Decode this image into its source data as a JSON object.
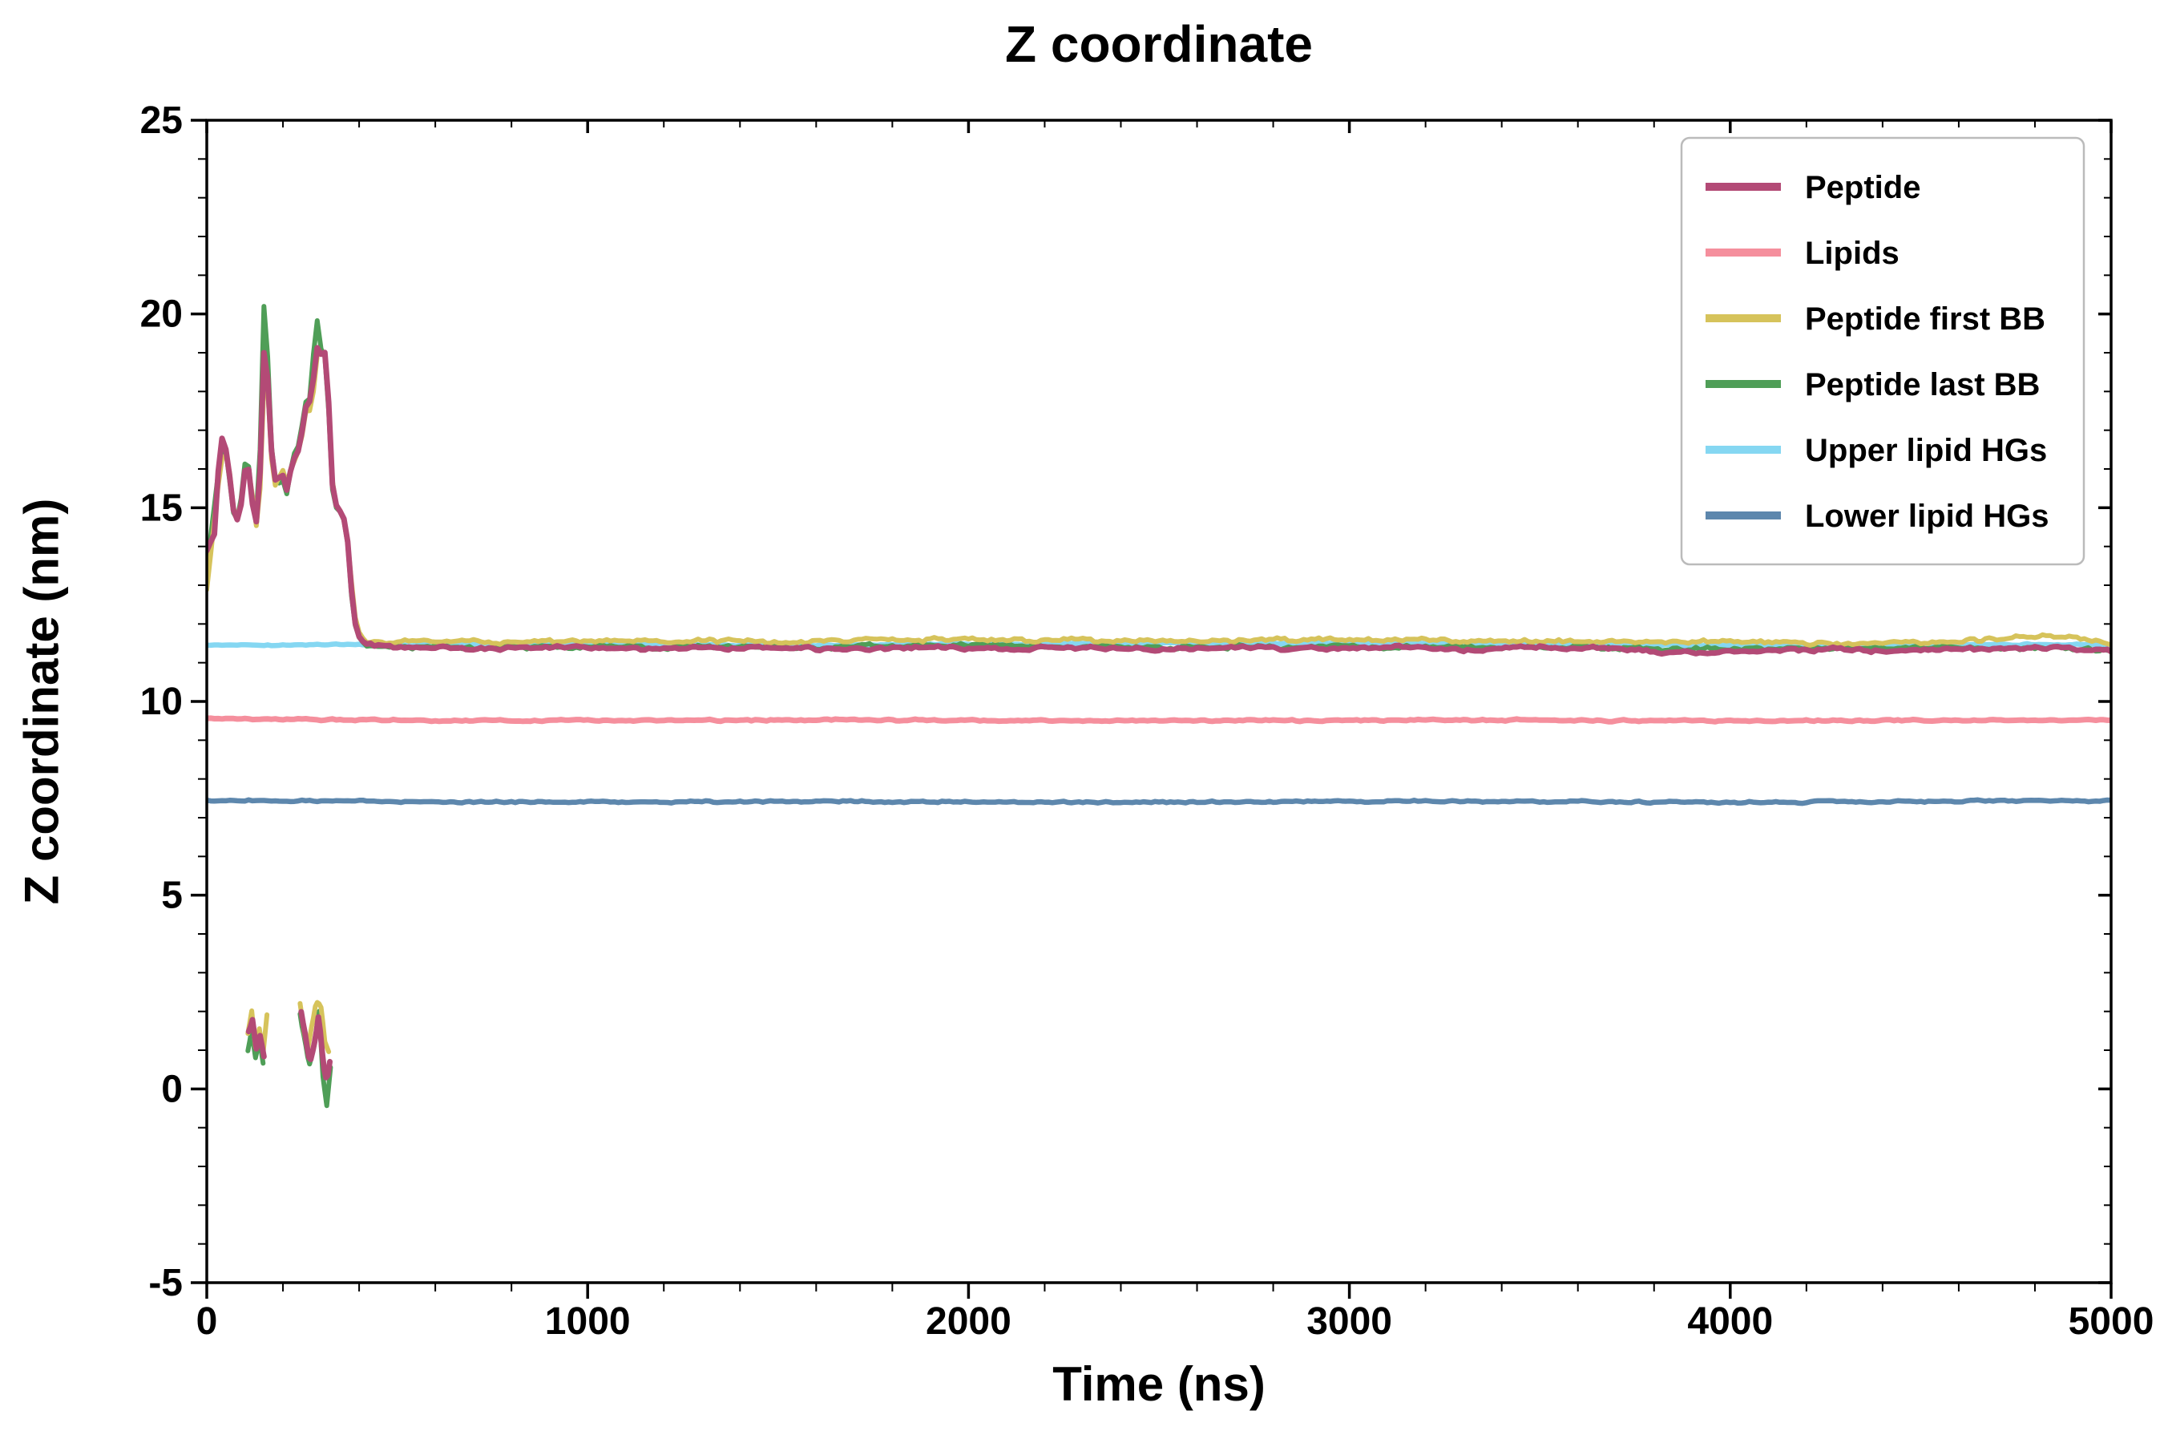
{
  "chart_data": {
    "type": "line",
    "title": "Z coordinate",
    "xlabel": "Time (ns)",
    "ylabel": "Z coordinate (nm)",
    "xlim": [
      0,
      5000
    ],
    "ylim": [
      -5,
      25
    ],
    "xticks": [
      0,
      1000,
      2000,
      3000,
      4000,
      5000
    ],
    "yticks": [
      -5,
      0,
      5,
      10,
      15,
      20,
      25
    ],
    "x_minor_step": 200,
    "y_minor_step": 1,
    "grid": false,
    "legend_position": "upper right",
    "axis_color": "#000000",
    "background_color": "#ffffff",
    "legend_border_color": "#bbbbbb",
    "noise_seed": 9,
    "legend_order": [
      "Peptide",
      "Lipids",
      "Peptide first BB",
      "Peptide last BB",
      "Upper lipid HGs",
      "Lower lipid HGs"
    ],
    "series": [
      {
        "name": "Upper lipid HGs",
        "color": "#85d7f2",
        "width": 6.5,
        "noise": 0.045,
        "segments": [
          [
            [
              0,
              11.45
            ],
            [
              800,
              11.47
            ],
            [
              1600,
              11.45
            ],
            [
              2400,
              11.5
            ],
            [
              3200,
              11.5
            ],
            [
              4000,
              11.45
            ],
            [
              5000,
              11.47
            ]
          ]
        ]
      },
      {
        "name": "Lower lipid HGs",
        "color": "#5d87ad",
        "width": 6.5,
        "noise": 0.055,
        "segments": [
          [
            [
              0,
              7.45
            ],
            [
              800,
              7.4
            ],
            [
              1600,
              7.42
            ],
            [
              2400,
              7.4
            ],
            [
              3200,
              7.43
            ],
            [
              4000,
              7.4
            ],
            [
              5000,
              7.44
            ]
          ]
        ]
      },
      {
        "name": "Lipids",
        "color": "#f58f9d",
        "width": 7,
        "noise": 0.05,
        "segments": [
          [
            [
              0,
              9.55
            ],
            [
              800,
              9.5
            ],
            [
              1600,
              9.52
            ],
            [
              2400,
              9.5
            ],
            [
              3200,
              9.52
            ],
            [
              4000,
              9.5
            ],
            [
              5000,
              9.52
            ]
          ]
        ]
      },
      {
        "name": "Peptide last BB",
        "color": "#4f9e57",
        "width": 6,
        "noise": 0.12,
        "segments": [
          [
            [
              0,
              13.4
            ],
            [
              30,
              15.9
            ],
            [
              45,
              16.9
            ],
            [
              60,
              15.7
            ],
            [
              75,
              14.4
            ],
            [
              90,
              15.2
            ],
            [
              105,
              16.5
            ],
            [
              120,
              15.0
            ],
            [
              135,
              14.6
            ],
            [
              150,
              20.2
            ],
            [
              158,
              19.6
            ],
            [
              165,
              17.2
            ],
            [
              175,
              16.0
            ],
            [
              185,
              15.4
            ],
            [
              195,
              15.9
            ],
            [
              210,
              15.4
            ],
            [
              225,
              16.3
            ],
            [
              240,
              16.6
            ],
            [
              255,
              17.4
            ],
            [
              265,
              18.1
            ],
            [
              275,
              17.5
            ],
            [
              285,
              20.4
            ],
            [
              295,
              19.2
            ],
            [
              305,
              19.0
            ],
            [
              315,
              18.8
            ],
            [
              325,
              16.2
            ],
            [
              335,
              14.8
            ],
            [
              345,
              15.3
            ],
            [
              355,
              14.5
            ],
            [
              365,
              14.9
            ],
            [
              375,
              13.2
            ],
            [
              385,
              12.2
            ],
            [
              395,
              11.7
            ],
            [
              420,
              11.4
            ],
            [
              600,
              11.4
            ],
            [
              1000,
              11.4
            ],
            [
              1500,
              11.4
            ],
            [
              2000,
              11.45
            ],
            [
              2500,
              11.4
            ],
            [
              3000,
              11.4
            ],
            [
              3500,
              11.4
            ],
            [
              4000,
              11.35
            ],
            [
              4500,
              11.4
            ],
            [
              5000,
              11.35
            ]
          ],
          [
            [
              108,
              1.0
            ],
            [
              118,
              1.5
            ],
            [
              128,
              0.8
            ],
            [
              138,
              1.2
            ],
            [
              148,
              0.7
            ]
          ],
          [
            [
              245,
              1.9
            ],
            [
              258,
              1.2
            ],
            [
              268,
              0.6
            ],
            [
              280,
              1.0
            ],
            [
              295,
              2.0
            ],
            [
              305,
              0.3
            ],
            [
              315,
              -0.4
            ],
            [
              325,
              0.5
            ]
          ]
        ]
      },
      {
        "name": "Peptide first BB",
        "color": "#d6c35b",
        "width": 6,
        "noise": 0.12,
        "segments": [
          [
            [
              0,
              12.9
            ],
            [
              30,
              15.6
            ],
            [
              45,
              16.6
            ],
            [
              60,
              15.9
            ],
            [
              75,
              14.5
            ],
            [
              90,
              15.1
            ],
            [
              105,
              16.2
            ],
            [
              120,
              15.3
            ],
            [
              135,
              14.2
            ],
            [
              150,
              18.2
            ],
            [
              158,
              18.6
            ],
            [
              165,
              16.8
            ],
            [
              175,
              15.7
            ],
            [
              185,
              15.5
            ],
            [
              195,
              16.1
            ],
            [
              210,
              15.6
            ],
            [
              225,
              16.1
            ],
            [
              240,
              16.4
            ],
            [
              255,
              17.1
            ],
            [
              265,
              17.9
            ],
            [
              275,
              17.2
            ],
            [
              285,
              18.8
            ],
            [
              295,
              19.1
            ],
            [
              305,
              18.8
            ],
            [
              315,
              19.0
            ],
            [
              325,
              16.5
            ],
            [
              335,
              15.0
            ],
            [
              345,
              15.1
            ],
            [
              355,
              14.7
            ],
            [
              365,
              14.6
            ],
            [
              375,
              13.6
            ],
            [
              385,
              12.5
            ],
            [
              395,
              11.8
            ],
            [
              420,
              11.55
            ],
            [
              600,
              11.55
            ],
            [
              1000,
              11.55
            ],
            [
              1500,
              11.55
            ],
            [
              2000,
              11.6
            ],
            [
              2500,
              11.55
            ],
            [
              3000,
              11.6
            ],
            [
              3500,
              11.55
            ],
            [
              4000,
              11.55
            ],
            [
              4300,
              11.5
            ],
            [
              4600,
              11.55
            ],
            [
              4850,
              11.7
            ],
            [
              5000,
              11.5
            ]
          ],
          [
            [
              108,
              1.4
            ],
            [
              118,
              2.0
            ],
            [
              128,
              1.1
            ],
            [
              138,
              1.6
            ],
            [
              148,
              1.0
            ],
            [
              158,
              1.9
            ]
          ],
          [
            [
              245,
              2.2
            ],
            [
              255,
              1.5
            ],
            [
              265,
              1.0
            ],
            [
              275,
              1.6
            ],
            [
              288,
              2.3
            ],
            [
              300,
              2.1
            ],
            [
              310,
              1.2
            ],
            [
              322,
              0.9
            ]
          ]
        ]
      },
      {
        "name": "Peptide",
        "color": "#b34a76",
        "width": 7,
        "noise": 0.1,
        "segments": [
          [
            [
              0,
              13.9
            ],
            [
              20,
              14.3
            ],
            [
              35,
              16.7
            ],
            [
              45,
              16.8
            ],
            [
              60,
              15.8
            ],
            [
              75,
              14.5
            ],
            [
              90,
              15.1
            ],
            [
              105,
              16.4
            ],
            [
              120,
              15.1
            ],
            [
              135,
              14.4
            ],
            [
              150,
              19.0
            ],
            [
              158,
              18.9
            ],
            [
              165,
              17.0
            ],
            [
              175,
              15.9
            ],
            [
              185,
              15.5
            ],
            [
              195,
              16.0
            ],
            [
              210,
              15.5
            ],
            [
              225,
              16.2
            ],
            [
              240,
              16.5
            ],
            [
              255,
              17.2
            ],
            [
              265,
              18.0
            ],
            [
              275,
              17.4
            ],
            [
              285,
              19.2
            ],
            [
              295,
              19.0
            ],
            [
              305,
              18.9
            ],
            [
              315,
              19.1
            ],
            [
              325,
              16.3
            ],
            [
              335,
              14.9
            ],
            [
              345,
              15.2
            ],
            [
              355,
              14.6
            ],
            [
              365,
              14.8
            ],
            [
              375,
              13.4
            ],
            [
              385,
              12.3
            ],
            [
              395,
              11.7
            ],
            [
              420,
              11.45
            ],
            [
              500,
              11.4
            ],
            [
              700,
              11.35
            ],
            [
              900,
              11.4
            ],
            [
              1100,
              11.35
            ],
            [
              1300,
              11.4
            ],
            [
              1500,
              11.35
            ],
            [
              1700,
              11.35
            ],
            [
              1900,
              11.4
            ],
            [
              2100,
              11.35
            ],
            [
              2300,
              11.4
            ],
            [
              2500,
              11.35
            ],
            [
              2700,
              11.4
            ],
            [
              2900,
              11.35
            ],
            [
              3100,
              11.4
            ],
            [
              3300,
              11.35
            ],
            [
              3500,
              11.4
            ],
            [
              3700,
              11.35
            ],
            [
              3900,
              11.25
            ],
            [
              4000,
              11.3
            ],
            [
              4200,
              11.35
            ],
            [
              4400,
              11.3
            ],
            [
              4600,
              11.35
            ],
            [
              4800,
              11.4
            ],
            [
              5000,
              11.3
            ]
          ],
          [
            [
              110,
              1.5
            ],
            [
              120,
              1.8
            ],
            [
              130,
              1.0
            ],
            [
              140,
              1.4
            ],
            [
              150,
              0.8
            ]
          ],
          [
            [
              248,
              2.0
            ],
            [
              260,
              1.3
            ],
            [
              270,
              0.7
            ],
            [
              282,
              1.1
            ],
            [
              294,
              1.9
            ],
            [
              306,
              0.6
            ],
            [
              316,
              0.2
            ],
            [
              324,
              0.8
            ]
          ]
        ]
      }
    ]
  }
}
